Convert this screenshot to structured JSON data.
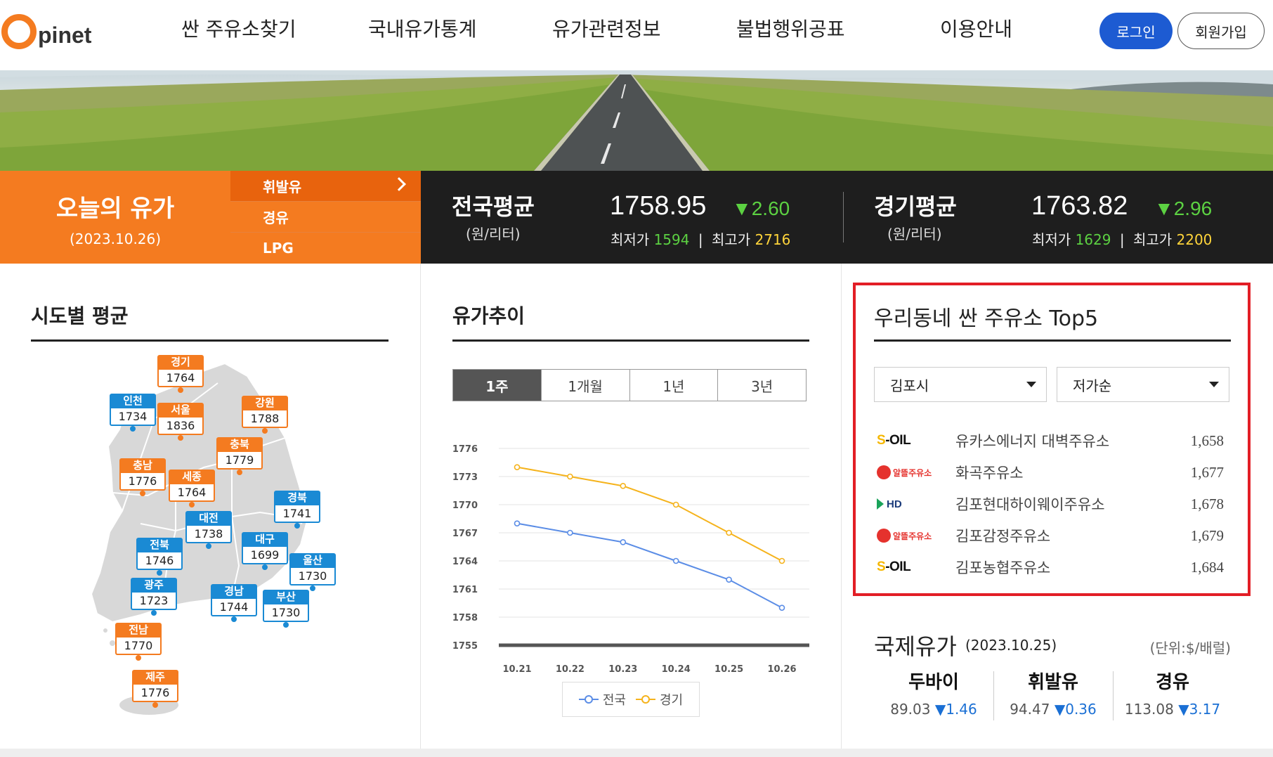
{
  "header": {
    "logo_text": "pinet",
    "nav": [
      "싼 주유소찾기",
      "국내유가통계",
      "유가관련정보",
      "불법행위공표",
      "이용안내"
    ],
    "login_label": "로그인",
    "join_label": "회원가입"
  },
  "today": {
    "title": "오늘의 유가",
    "date": "(2023.10.26)",
    "fuel_tabs": [
      "휘발유",
      "경유",
      "LPG"
    ]
  },
  "national": {
    "title": "전국평균",
    "unit": "(원/리터)",
    "price": "1758.95",
    "change": "▼2.60",
    "min_label": "최저가",
    "min": "1594",
    "max_label": "최고가",
    "max": "2716",
    "sep": "|"
  },
  "gyeonggi": {
    "title": "경기평균",
    "unit": "(원/리터)",
    "price": "1763.82",
    "change": "▼2.96",
    "min_label": "최저가",
    "min": "1629",
    "max_label": "최고가",
    "max": "2200",
    "sep": "|"
  },
  "regional": {
    "title": "시도별 평균",
    "regions": [
      {
        "name": "경기",
        "value": "1764",
        "color": "orange"
      },
      {
        "name": "인천",
        "value": "1734",
        "color": "blue"
      },
      {
        "name": "서울",
        "value": "1836",
        "color": "orange"
      },
      {
        "name": "강원",
        "value": "1788",
        "color": "orange"
      },
      {
        "name": "충북",
        "value": "1779",
        "color": "orange"
      },
      {
        "name": "충남",
        "value": "1776",
        "color": "orange"
      },
      {
        "name": "세종",
        "value": "1764",
        "color": "orange"
      },
      {
        "name": "경북",
        "value": "1741",
        "color": "blue"
      },
      {
        "name": "대전",
        "value": "1738",
        "color": "blue"
      },
      {
        "name": "대구",
        "value": "1699",
        "color": "blue"
      },
      {
        "name": "전북",
        "value": "1746",
        "color": "blue"
      },
      {
        "name": "울산",
        "value": "1730",
        "color": "blue"
      },
      {
        "name": "광주",
        "value": "1723",
        "color": "blue"
      },
      {
        "name": "경남",
        "value": "1744",
        "color": "blue"
      },
      {
        "name": "부산",
        "value": "1730",
        "color": "blue"
      },
      {
        "name": "전남",
        "value": "1770",
        "color": "orange"
      },
      {
        "name": "제주",
        "value": "1776",
        "color": "orange"
      }
    ]
  },
  "trend": {
    "title": "유가추이",
    "periods": [
      "1주",
      "1개월",
      "1년",
      "3년"
    ],
    "active_period": "1주"
  },
  "chart_data": {
    "type": "line",
    "x": [
      "10.21",
      "10.22",
      "10.23",
      "10.24",
      "10.25",
      "10.26"
    ],
    "yticks": [
      1755,
      1758,
      1761,
      1764,
      1767,
      1770,
      1773,
      1776
    ],
    "ylim": [
      1755,
      1776
    ],
    "grid": true,
    "legend": "bottom",
    "series": [
      {
        "name": "전국",
        "color": "#5b8de6",
        "values": [
          1768,
          1767,
          1766,
          1764,
          1762,
          1759
        ]
      },
      {
        "name": "경기",
        "color": "#f5b31c",
        "values": [
          1774,
          1773,
          1772,
          1770,
          1767,
          1764
        ]
      }
    ]
  },
  "top5": {
    "title": "우리동네 싼 주유소 Top5",
    "region_select": "김포시",
    "sort_select": "저가순",
    "stations": [
      {
        "brand": "S-OIL",
        "logo": "soil",
        "name": "유카스에너지 대벽주유소",
        "price": "1,658"
      },
      {
        "brand": "알뜰주유소",
        "logo": "altteul",
        "name": "화곡주유소",
        "price": "1,677"
      },
      {
        "brand": "HD",
        "logo": "hd",
        "name": "김포현대하이웨이주유소",
        "price": "1,678"
      },
      {
        "brand": "알뜰주유소",
        "logo": "altteul",
        "name": "김포감정주유소",
        "price": "1,679"
      },
      {
        "brand": "S-OIL",
        "logo": "soil",
        "name": "김포농협주유소",
        "price": "1,684"
      }
    ]
  },
  "intl": {
    "title": "국제유가",
    "date": "(2023.10.25)",
    "unit": "(단위:$/배럴)",
    "items": [
      {
        "name": "두바이",
        "value": "89.03",
        "change": "▼1.46"
      },
      {
        "name": "휘발유",
        "value": "94.47",
        "change": "▼0.36"
      },
      {
        "name": "경유",
        "value": "113.08",
        "change": "▼3.17"
      }
    ]
  },
  "colors": {
    "accent": "#f47b20",
    "primary": "#1d5bd2",
    "highlight": "#e21e26"
  }
}
